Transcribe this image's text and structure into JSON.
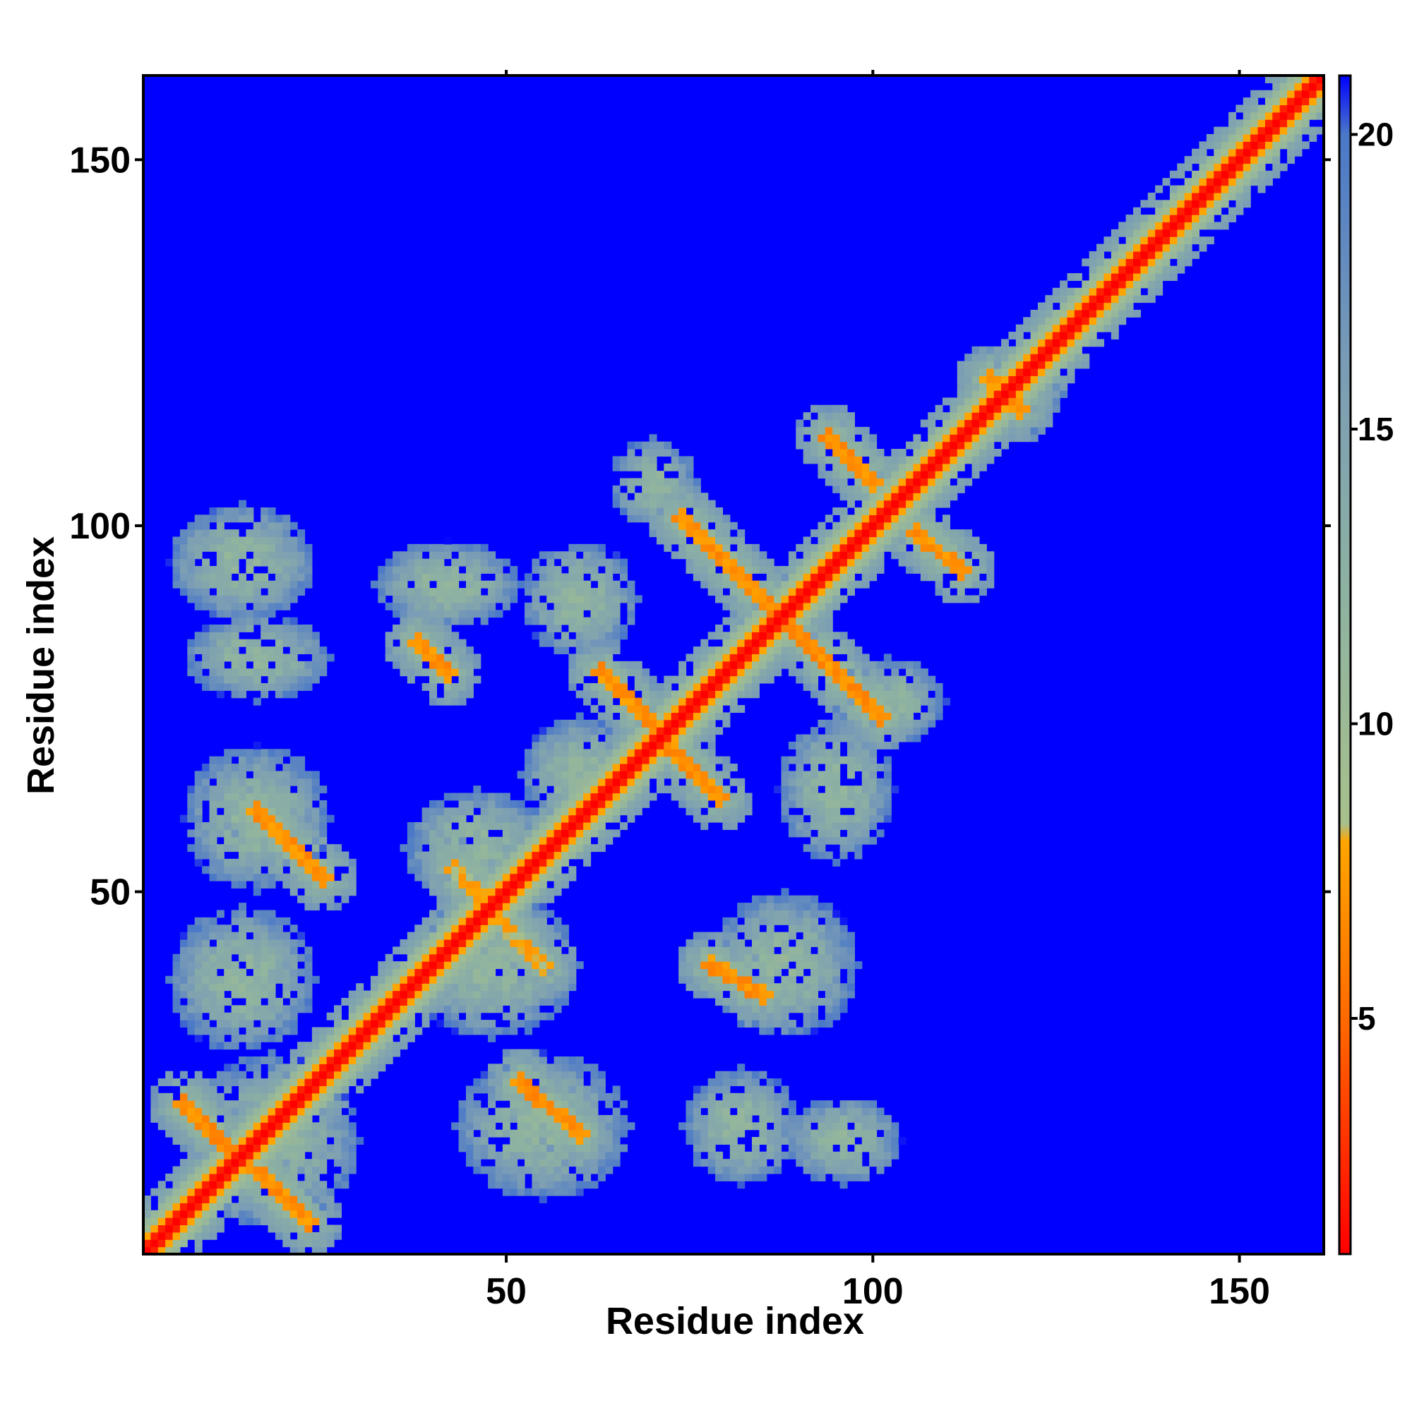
{
  "chart_data": {
    "type": "heatmap",
    "title": "",
    "xlabel": "Residue index",
    "ylabel": "Residue index",
    "xlim": [
      1,
      161
    ],
    "ylim": [
      1,
      161
    ],
    "x_ticks": [
      50,
      100,
      150
    ],
    "y_ticks": [
      50,
      100,
      150
    ],
    "colorbar": {
      "range": [
        1,
        21
      ],
      "ticks": [
        5,
        10,
        15,
        20
      ],
      "stops": [
        {
          "value": 1,
          "color": "#ff0000"
        },
        {
          "value": 5,
          "color": "#ff6a00"
        },
        {
          "value": 8,
          "color": "#ffa500"
        },
        {
          "value": 8.3,
          "color": "#a8c08c"
        },
        {
          "value": 12,
          "color": "#8fb3a0"
        },
        {
          "value": 16,
          "color": "#7b9db5"
        },
        {
          "value": 20,
          "color": "#4a78c8"
        },
        {
          "value": 21,
          "color": "#0000ff"
        }
      ]
    },
    "background_value": 21,
    "diagonal": {
      "value": 1,
      "halfwidth": 1.5,
      "near_value": 9,
      "near_halfwidth": 4
    },
    "contact_bands": [
      {
        "from": [
          6,
          21
        ],
        "to": [
          23,
          5
        ],
        "value": 6
      },
      {
        "from": [
          16,
          61
        ],
        "to": [
          25,
          52
        ],
        "value": 6
      },
      {
        "from": [
          38,
          84
        ],
        "to": [
          42,
          80
        ],
        "value": 6
      },
      {
        "from": [
          52,
          24
        ],
        "to": [
          60,
          17
        ],
        "value": 6
      },
      {
        "from": [
          74,
          101
        ],
        "to": [
          87,
          88
        ],
        "value": 6
      },
      {
        "from": [
          87,
          88
        ],
        "to": [
          101,
          74
        ],
        "value": 6
      },
      {
        "from": [
          63,
          80
        ],
        "to": [
          79,
          63
        ],
        "value": 6
      },
      {
        "from": [
          94,
          112
        ],
        "to": [
          100,
          106
        ],
        "value": 6
      },
      {
        "from": [
          106,
          99
        ],
        "to": [
          112,
          94
        ],
        "value": 6
      },
      {
        "from": [
          78,
          40
        ],
        "to": [
          85,
          36
        ],
        "value": 6
      },
      {
        "from": [
          43,
          53
        ],
        "to": [
          55,
          40
        ],
        "value": 7
      },
      {
        "from": [
          116,
          120
        ],
        "to": [
          120,
          116
        ],
        "value": 6
      }
    ],
    "halo_regions": [
      {
        "cx": 14,
        "cy": 95,
        "rx": 10,
        "ry": 8
      },
      {
        "cx": 16,
        "cy": 82,
        "rx": 10,
        "ry": 6
      },
      {
        "cx": 42,
        "cy": 92,
        "rx": 10,
        "ry": 6
      },
      {
        "cx": 60,
        "cy": 90,
        "rx": 8,
        "ry": 8
      },
      {
        "cx": 70,
        "cy": 106,
        "rx": 6,
        "ry": 6
      },
      {
        "cx": 16,
        "cy": 60,
        "rx": 10,
        "ry": 10
      },
      {
        "cx": 46,
        "cy": 56,
        "rx": 10,
        "ry": 8
      },
      {
        "cx": 60,
        "cy": 66,
        "rx": 8,
        "ry": 8
      },
      {
        "cx": 14,
        "cy": 38,
        "rx": 10,
        "ry": 10
      },
      {
        "cx": 48,
        "cy": 40,
        "rx": 12,
        "ry": 10
      },
      {
        "cx": 18,
        "cy": 16,
        "rx": 12,
        "ry": 12
      },
      {
        "cx": 55,
        "cy": 18,
        "rx": 12,
        "ry": 10
      },
      {
        "cx": 82,
        "cy": 18,
        "rx": 8,
        "ry": 8
      },
      {
        "cx": 96,
        "cy": 16,
        "rx": 8,
        "ry": 6
      },
      {
        "cx": 88,
        "cy": 40,
        "rx": 10,
        "ry": 10
      },
      {
        "cx": 95,
        "cy": 64,
        "rx": 8,
        "ry": 10
      },
      {
        "cx": 102,
        "cy": 76,
        "rx": 8,
        "ry": 6
      },
      {
        "cx": 120,
        "cy": 118,
        "rx": 6,
        "ry": 6
      }
    ]
  }
}
